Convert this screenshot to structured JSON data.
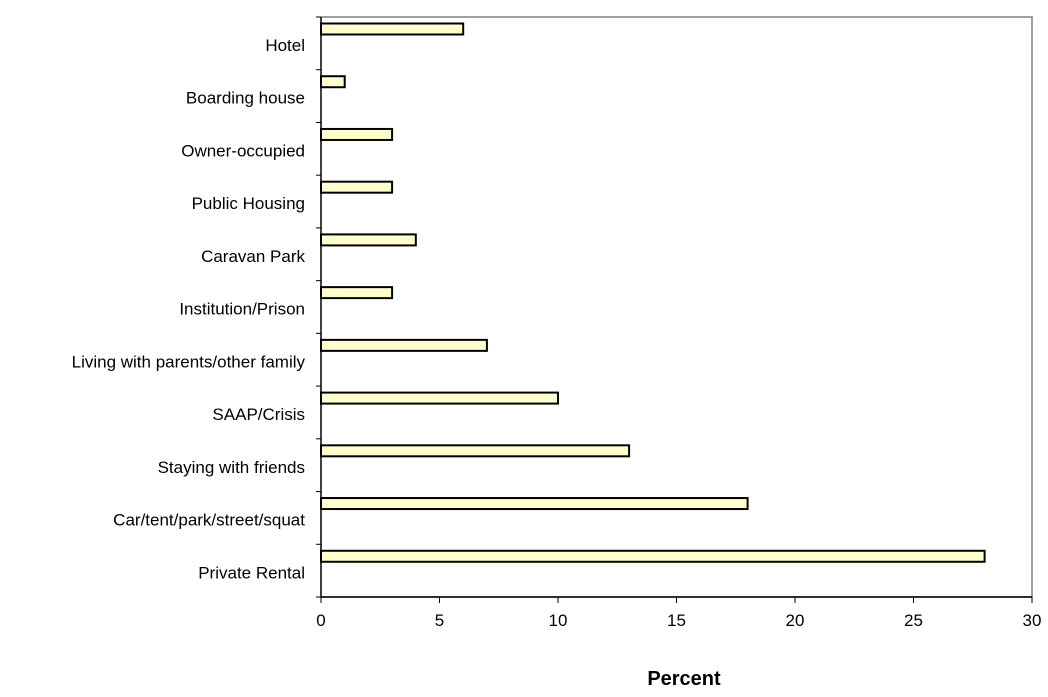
{
  "chart_data": {
    "type": "bar",
    "orientation": "horizontal",
    "categories": [
      "Hotel",
      "Boarding house",
      "Owner-occupied",
      "Public Housing",
      "Caravan Park",
      "Institution/Prison",
      "Living with parents/other family",
      "SAAP/Crisis",
      "Staying with friends",
      "Car/tent/park/street/squat",
      "Private Rental"
    ],
    "values": [
      6,
      1,
      3,
      3,
      4,
      3,
      7,
      10,
      13,
      18,
      28
    ],
    "xlabel": "Percent",
    "ylabel": "",
    "xlim": [
      0,
      30
    ],
    "xticks": [
      0,
      5,
      10,
      15,
      20,
      25,
      30
    ],
    "grid": false,
    "legend": "none",
    "colors": {
      "bar_fill": "#FFFFCC",
      "bar_stroke": "#000000",
      "axis": "#000000",
      "frame": "#808080"
    }
  }
}
